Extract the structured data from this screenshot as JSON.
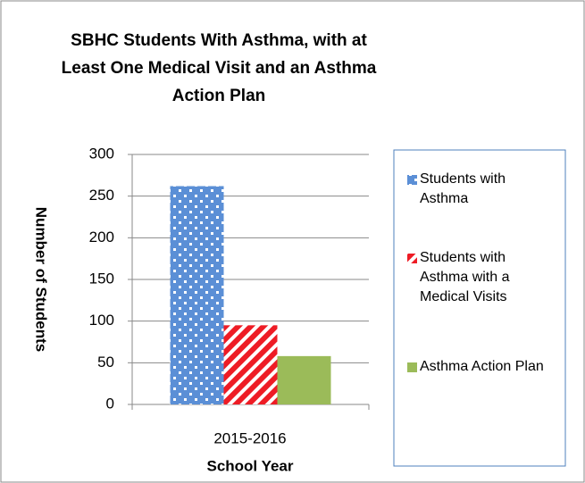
{
  "chart_data": {
    "type": "bar",
    "title": "SBHC Students With Asthma, with at Least One Medical Visit and an Asthma Action Plan",
    "x_label": "School Year",
    "y_label": "Number of Students",
    "categories": [
      "2015-2016"
    ],
    "series": [
      {
        "name": "Students with Asthma",
        "color": "#5b8fd6",
        "pattern": "dots",
        "values": [
          262
        ]
      },
      {
        "name": "Students with Asthma with a Medical Visits",
        "color": "#ee1c25",
        "pattern": "stripes",
        "values": [
          95
        ]
      },
      {
        "name": "Asthma Action Plan",
        "color": "#9bbb59",
        "pattern": "solid",
        "values": [
          58
        ]
      }
    ],
    "ylim": [
      0,
      300
    ],
    "yticks": [
      0,
      50,
      100,
      150,
      200,
      250,
      300
    ],
    "grid": true,
    "legend": "right"
  }
}
